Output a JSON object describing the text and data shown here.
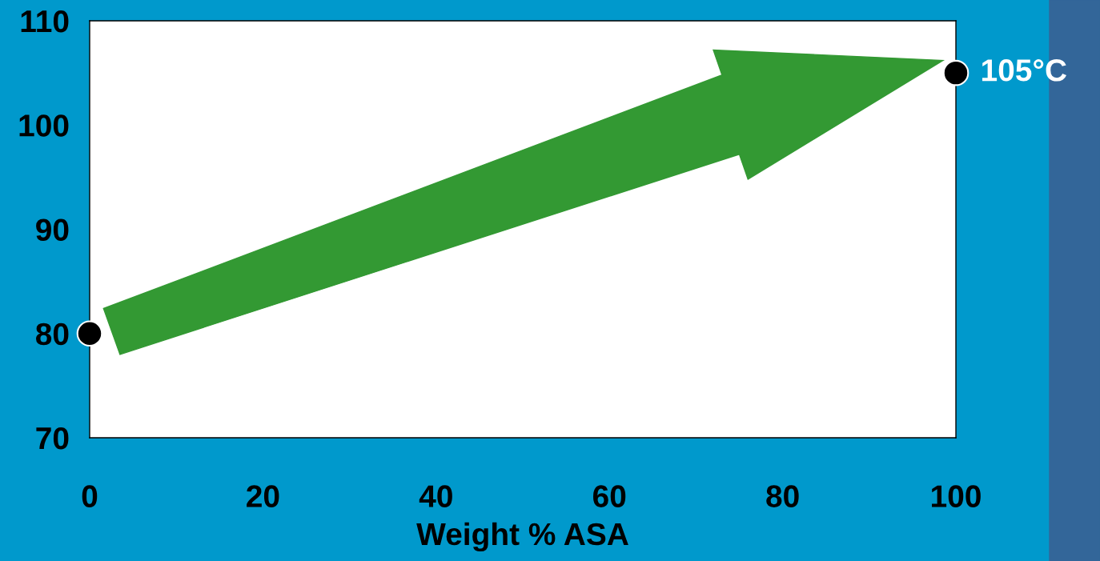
{
  "chart_data": {
    "type": "scatter",
    "xlabel": "Weight % ASA",
    "x": [
      0,
      100
    ],
    "series": [
      {
        "color": "#000000",
        "values": [
          80,
          105
        ]
      }
    ],
    "xlim": [
      0,
      100
    ],
    "xticks": [
      0,
      20,
      40,
      60,
      80,
      100
    ],
    "ylim": [
      70,
      110
    ],
    "yticks": [
      70,
      80,
      90,
      100,
      110
    ],
    "marker": "circle",
    "grid": false,
    "annotations": [
      {
        "text": "105°C",
        "x": 100,
        "y": 105
      }
    ]
  }
}
